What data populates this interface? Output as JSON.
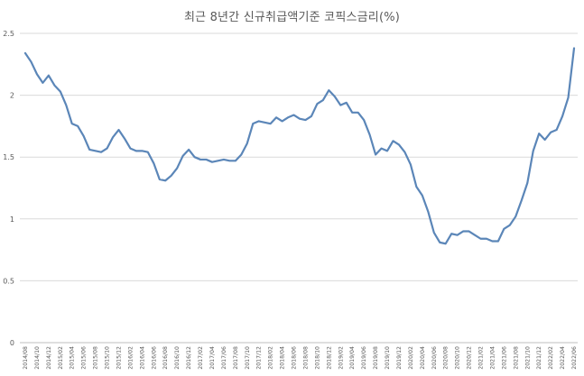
{
  "chart_data": {
    "type": "line",
    "title": "최근 8년간 신규취급액기준 코픽스금리(%)",
    "xlabel": "",
    "ylabel": "",
    "ylim": [
      0,
      2.5
    ],
    "yticks": [
      "0",
      "0.5",
      "1",
      "1.5",
      "2",
      "2.5"
    ],
    "grid": true,
    "legend": "none",
    "line_color": "#5b86b8",
    "x_tick_labels": [
      "2014/08",
      "2014/10",
      "2014/12",
      "2015/02",
      "2015/04",
      "2015/06",
      "2015/08",
      "2015/10",
      "2015/12",
      "2016/02",
      "2016/04",
      "2016/06",
      "2016/08",
      "2016/10",
      "2016/12",
      "2017/02",
      "2017/04",
      "2017/06",
      "2017/08",
      "2017/10",
      "2017/12",
      "2018/02",
      "2018/04",
      "2018/06",
      "2018/08",
      "2018/10",
      "2018/12",
      "2019/02",
      "2019/04",
      "2019/06",
      "2019/08",
      "2019/10",
      "2019/12",
      "2020/02",
      "2020/04",
      "2020/06",
      "2020/08",
      "2020/10",
      "2020/12",
      "2021/02",
      "2021/04",
      "2021/06",
      "2021/08",
      "2021/10",
      "2021/12",
      "2022/02",
      "2022/04",
      "2022/06"
    ],
    "x": [
      "2014/08",
      "2014/09",
      "2014/10",
      "2014/11",
      "2014/12",
      "2015/01",
      "2015/02",
      "2015/03",
      "2015/04",
      "2015/05",
      "2015/06",
      "2015/07",
      "2015/08",
      "2015/09",
      "2015/10",
      "2015/11",
      "2015/12",
      "2016/01",
      "2016/02",
      "2016/03",
      "2016/04",
      "2016/05",
      "2016/06",
      "2016/07",
      "2016/08",
      "2016/09",
      "2016/10",
      "2016/11",
      "2016/12",
      "2017/01",
      "2017/02",
      "2017/03",
      "2017/04",
      "2017/05",
      "2017/06",
      "2017/07",
      "2017/08",
      "2017/09",
      "2017/10",
      "2017/11",
      "2017/12",
      "2018/01",
      "2018/02",
      "2018/03",
      "2018/04",
      "2018/05",
      "2018/06",
      "2018/07",
      "2018/08",
      "2018/09",
      "2018/10",
      "2018/11",
      "2018/12",
      "2019/01",
      "2019/02",
      "2019/03",
      "2019/04",
      "2019/05",
      "2019/06",
      "2019/07",
      "2019/08",
      "2019/09",
      "2019/10",
      "2019/11",
      "2019/12",
      "2020/01",
      "2020/02",
      "2020/03",
      "2020/04",
      "2020/05",
      "2020/06",
      "2020/07",
      "2020/08",
      "2020/09",
      "2020/10",
      "2020/11",
      "2020/12",
      "2021/01",
      "2021/02",
      "2021/03",
      "2021/04",
      "2021/05",
      "2021/06",
      "2021/07",
      "2021/08",
      "2021/09",
      "2021/10",
      "2021/11",
      "2021/12",
      "2022/01",
      "2022/02",
      "2022/03",
      "2022/04",
      "2022/05",
      "2022/06"
    ],
    "series": [
      {
        "values": [
          2.34,
          2.27,
          2.17,
          2.1,
          2.16,
          2.08,
          2.03,
          1.92,
          1.77,
          1.75,
          1.67,
          1.56,
          1.55,
          1.54,
          1.57,
          1.66,
          1.72,
          1.65,
          1.57,
          1.55,
          1.55,
          1.54,
          1.45,
          1.32,
          1.31,
          1.35,
          1.41,
          1.51,
          1.56,
          1.5,
          1.48,
          1.48,
          1.46,
          1.47,
          1.48,
          1.47,
          1.47,
          1.52,
          1.61,
          1.77,
          1.79,
          1.78,
          1.77,
          1.82,
          1.79,
          1.82,
          1.84,
          1.81,
          1.8,
          1.83,
          1.93,
          1.96,
          2.04,
          1.99,
          1.92,
          1.94,
          1.86,
          1.86,
          1.8,
          1.68,
          1.52,
          1.57,
          1.55,
          1.63,
          1.6,
          1.54,
          1.44,
          1.26,
          1.19,
          1.06,
          0.89,
          0.81,
          0.8,
          0.88,
          0.87,
          0.9,
          0.9,
          0.87,
          0.84,
          0.84,
          0.82,
          0.82,
          0.92,
          0.95,
          1.02,
          1.15,
          1.29,
          1.55,
          1.69,
          1.64,
          1.7,
          1.72,
          1.83,
          1.98,
          2.38
        ]
      }
    ]
  }
}
